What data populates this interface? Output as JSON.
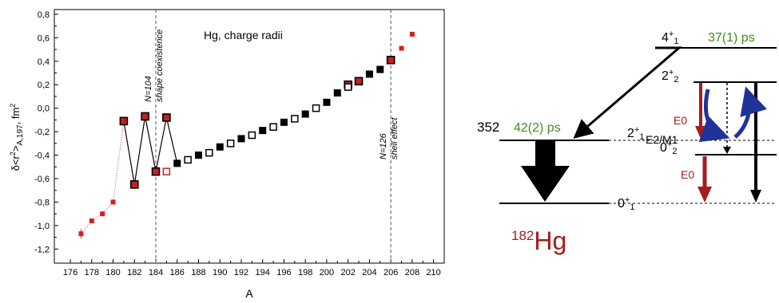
{
  "chart_data": {
    "type": "scatter",
    "title": "Hg, charge radii",
    "xlabel": "A",
    "ylabel_parts": {
      "main": "δ<r",
      "sup": "2",
      "close": ">",
      "sub": "A,197",
      "unit": ", fm",
      "unit_sup": "2"
    },
    "xlim": [
      174.5,
      211
    ],
    "ylim": [
      -1.32,
      0.84
    ],
    "xticks": [
      "176",
      "178",
      "180",
      "182",
      "184",
      "186",
      "188",
      "190",
      "192",
      "194",
      "196",
      "198",
      "200",
      "202",
      "204",
      "206",
      "208",
      "210"
    ],
    "yticks": [
      "0,8",
      "0,6",
      "0,4",
      "0,2",
      "0,0",
      "-0,2",
      "-0,4",
      "-0,6",
      "-0,8",
      "-1,0",
      "-1,2"
    ],
    "grid": false,
    "vlines": [
      {
        "x": 184,
        "label": "N=104",
        "label2": "shape coexistence"
      },
      {
        "x": 206,
        "label": "N=126",
        "label2": "shell effect"
      }
    ],
    "series": [
      {
        "marker": "small-red-square",
        "points": [
          [
            177,
            -1.07
          ],
          [
            178,
            -0.96
          ],
          [
            179,
            -0.9
          ],
          [
            180,
            -0.8
          ],
          [
            207,
            0.51
          ],
          [
            208,
            0.63
          ]
        ]
      },
      {
        "marker": "red-black-square",
        "points": [
          [
            181,
            -0.11
          ],
          [
            182,
            -0.65
          ],
          [
            183,
            -0.07
          ],
          [
            184,
            -0.54
          ],
          [
            185,
            -0.08
          ],
          [
            202,
            0.2
          ],
          [
            203,
            0.23
          ],
          [
            206,
            0.41
          ]
        ]
      },
      {
        "marker": "open-red-square",
        "points": [
          [
            185,
            -0.54
          ]
        ]
      },
      {
        "marker": "black-square",
        "points": [
          [
            186,
            -0.47
          ],
          [
            188,
            -0.4
          ],
          [
            190,
            -0.33
          ],
          [
            192,
            -0.26
          ],
          [
            194,
            -0.19
          ],
          [
            196,
            -0.12
          ],
          [
            198,
            -0.05
          ],
          [
            200,
            0.05
          ],
          [
            201,
            0.13
          ],
          [
            204,
            0.29
          ],
          [
            205,
            0.33
          ]
        ]
      },
      {
        "marker": "open-black-square",
        "points": [
          [
            187,
            -0.44
          ],
          [
            189,
            -0.38
          ],
          [
            191,
            -0.3
          ],
          [
            193,
            -0.23
          ],
          [
            195,
            -0.16
          ],
          [
            197,
            -0.09
          ],
          [
            199,
            0.0
          ],
          [
            202,
            0.18
          ]
        ]
      }
    ],
    "zigzag_line": [
      [
        181,
        -0.11
      ],
      [
        182,
        -0.65
      ],
      [
        183,
        -0.07
      ],
      [
        184,
        -0.54
      ],
      [
        185,
        -0.08
      ],
      [
        186,
        -0.47
      ]
    ],
    "dotted_line": [
      [
        177,
        -1.07
      ],
      [
        178,
        -0.96
      ],
      [
        179,
        -0.9
      ],
      [
        180,
        -0.8
      ],
      [
        181,
        -0.11
      ]
    ]
  },
  "level_scheme": {
    "nucleus_mass": "182",
    "nucleus_symbol": "Hg",
    "energy_label": "352",
    "lifetime_2plus1": "42(2) ps",
    "lifetime_4plus1": "37(1) ps",
    "transition_e0_upper": "E0",
    "transition_e2m1": "E2/M1",
    "transition_e0_lower": "E0",
    "levels": [
      {
        "id": "4plus1",
        "base": "4",
        "sup": "+",
        "sub": "1"
      },
      {
        "id": "2plus2",
        "base": "2",
        "sup": "+",
        "sub": "2"
      },
      {
        "id": "2plus1",
        "base": "2",
        "sup": "+",
        "sub": "1"
      },
      {
        "id": "0plus2",
        "base": "0",
        "sup": "+",
        "sub": "2"
      },
      {
        "id": "0plus1",
        "base": "0",
        "sup": "+",
        "sub": "1"
      }
    ],
    "colors": {
      "green": "#3e8e1e",
      "red": "#a61c1c",
      "blue": "#1f3399"
    }
  }
}
